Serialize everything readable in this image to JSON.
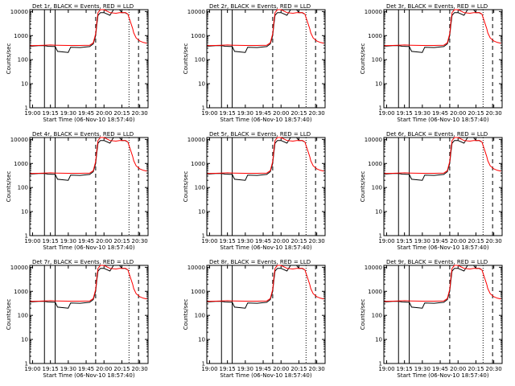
{
  "colors": {
    "events": "#000000",
    "lld": "#ff0000",
    "background": "#ffffff"
  },
  "panels": [
    {
      "title": "Det 1r, BLACK = Events, RED = LLD",
      "xlabel": "Start Time (06-Nov-10 18:57:40)",
      "ylabel": "Counts/sec"
    },
    {
      "title": "Det 2r, BLACK = Events, RED = LLD",
      "xlabel": "Start Time (06-Nov-10 18:57:40)",
      "ylabel": "Counts/sec"
    },
    {
      "title": "Det 3r, BLACK = Events, RED = LLD",
      "xlabel": "Start Time (06-Nov-10 18:57:40)",
      "ylabel": "Counts/sec"
    },
    {
      "title": "Det 4r, BLACK = Events, RED = LLD",
      "xlabel": "Start Time (06-Nov-10 18:57:40)",
      "ylabel": "Counts/sec"
    },
    {
      "title": "Det 5r, BLACK = Events, RED = LLD",
      "xlabel": "Start Time (06-Nov-10 18:57:40)",
      "ylabel": "Counts/sec"
    },
    {
      "title": "Det 6r, BLACK = Events, RED = LLD",
      "xlabel": "Start Time (06-Nov-10 18:57:40)",
      "ylabel": "Counts/sec"
    },
    {
      "title": "Det 7r, BLACK = Events, RED = LLD",
      "xlabel": "Start Time (06-Nov-10 18:57:40)",
      "ylabel": "Counts/sec"
    },
    {
      "title": "Det 8r, BLACK = Events, RED = LLD",
      "xlabel": "Start Time (06-Nov-10 18:57:40)",
      "ylabel": "Counts/sec"
    },
    {
      "title": "Det 9r, BLACK = Events, RED = LLD",
      "xlabel": "Start Time (06-Nov-10 18:57:40)",
      "ylabel": "Counts/sec"
    }
  ],
  "chart_data": {
    "type": "line",
    "layout": "3x3 grid of identical-format panels",
    "xticks": [
      "19:00",
      "19:15",
      "19:30",
      "19:45",
      "20:00",
      "20:15",
      "20:30"
    ],
    "xlim": [
      "18:57:40",
      "20:37"
    ],
    "ylim": [
      1,
      12000
    ],
    "yscale": "log",
    "yticks": [
      1,
      10,
      100,
      1000,
      10000
    ],
    "ytick_labels": [
      "1",
      "10",
      "100",
      "1000",
      "10000"
    ],
    "vlines": [
      {
        "time": "19:10",
        "style": "solid"
      },
      {
        "time": "19:19",
        "style": "solid"
      },
      {
        "time": "19:53",
        "style": "dashed"
      },
      {
        "time": "20:21",
        "style": "dotted"
      },
      {
        "time": "20:29",
        "style": "dashed"
      }
    ],
    "series": [
      {
        "name": "Events",
        "points": [
          [
            "18:58",
            360
          ],
          [
            "19:05",
            380
          ],
          [
            "19:10",
            380
          ],
          [
            "19:13",
            360
          ],
          [
            "19:19",
            350
          ],
          [
            "19:21",
            220
          ],
          [
            "19:30",
            200
          ],
          [
            "19:32",
            330
          ],
          [
            "19:40",
            320
          ],
          [
            "19:48",
            350
          ],
          [
            "19:51",
            450
          ],
          [
            "19:53",
            1000
          ],
          [
            "19:54",
            3000
          ],
          [
            "19:55",
            7000
          ],
          [
            "19:57",
            9000
          ],
          [
            "20:00",
            9000
          ],
          [
            "20:05",
            7000
          ],
          [
            "20:08",
            12000
          ],
          [
            "20:13",
            12000
          ],
          [
            "20:15",
            9000
          ],
          [
            "20:18",
            9000
          ],
          [
            "20:19",
            8000
          ]
        ]
      },
      {
        "name": "LLD",
        "points": [
          [
            "18:58",
            380
          ],
          [
            "19:05",
            390
          ],
          [
            "19:10",
            400
          ],
          [
            "19:15",
            410
          ],
          [
            "19:20",
            400
          ],
          [
            "19:30",
            390
          ],
          [
            "19:40",
            390
          ],
          [
            "19:48",
            400
          ],
          [
            "19:51",
            500
          ],
          [
            "19:53",
            1200
          ],
          [
            "19:54",
            4000
          ],
          [
            "19:55",
            9000
          ],
          [
            "19:57",
            12000
          ],
          [
            "20:00",
            12000
          ],
          [
            "20:05",
            9000
          ],
          [
            "20:10",
            8500
          ],
          [
            "20:13",
            9000
          ],
          [
            "20:15",
            9000
          ],
          [
            "20:18",
            9000
          ],
          [
            "20:20",
            8000
          ],
          [
            "20:22",
            4000
          ],
          [
            "20:24",
            2000
          ],
          [
            "20:25",
            1300
          ],
          [
            "20:27",
            800
          ],
          [
            "20:30",
            600
          ],
          [
            "20:33",
            520
          ],
          [
            "20:36",
            480
          ]
        ]
      }
    ],
    "legend_placement": "none",
    "grid": false
  }
}
